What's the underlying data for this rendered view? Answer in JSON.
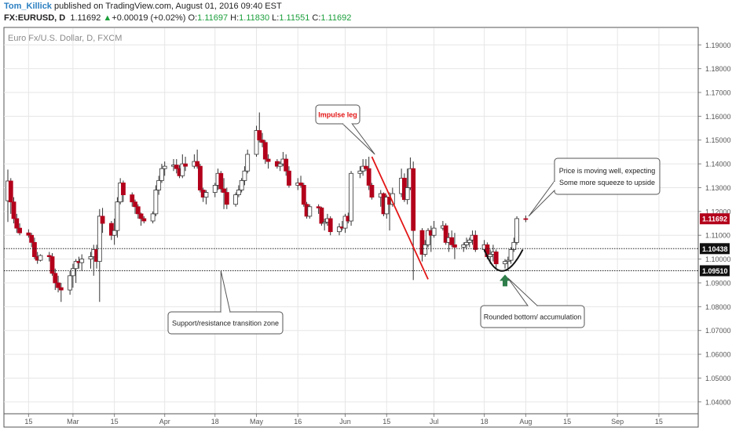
{
  "header": {
    "author": "Tom_Killick",
    "published": "published on TradingView.com, August 01, 2016 09:40 EST",
    "symbol": "FX:EURUSD, D",
    "last": "1.11692",
    "change_arrow": "▲",
    "change": "+0.00019 (+0.02%)",
    "o_label": "O:",
    "o_value": "1.11697",
    "h_label": "H:",
    "h_value": "1.11830",
    "l_label": "L:",
    "l_value": "1.11551",
    "c_label": "C:",
    "c_value": "1.11692"
  },
  "chart_title": "Euro Fx/U.S. Dollar, D, FXCM",
  "colors": {
    "bull": "#ffffff",
    "bear": "#b3001b",
    "wick": "#333333",
    "impulse": "#e31515",
    "arrow": "#2f7d4a",
    "grid": "#e6e6e6"
  },
  "chart_data": {
    "type": "candlestick",
    "x_start_date": "2016-02-08",
    "x_end_date": "2016-09-19",
    "ylim": [
      1.035,
      1.197
    ],
    "y_ticks": [
      "1.19000",
      "1.18000",
      "1.17000",
      "1.16000",
      "1.15000",
      "1.14000",
      "1.13000",
      "1.12000",
      "1.11000",
      "1.10000",
      "1.09000",
      "1.08000",
      "1.07000",
      "1.06000",
      "1.05000",
      "1.04000"
    ],
    "x_ticks": [
      {
        "date": "2016-02-15",
        "label": "15"
      },
      {
        "date": "2016-03-01",
        "label": "Mar"
      },
      {
        "date": "2016-03-15",
        "label": "15"
      },
      {
        "date": "2016-04-01",
        "label": "Apr"
      },
      {
        "date": "2016-04-18",
        "label": "18"
      },
      {
        "date": "2016-05-02",
        "label": "May"
      },
      {
        "date": "2016-05-16",
        "label": "16"
      },
      {
        "date": "2016-06-01",
        "label": "Jun"
      },
      {
        "date": "2016-06-15",
        "label": "15"
      },
      {
        "date": "2016-07-01",
        "label": "Jul"
      },
      {
        "date": "2016-07-18",
        "label": "18"
      },
      {
        "date": "2016-08-01",
        "label": "Aug"
      },
      {
        "date": "2016-08-15",
        "label": "15"
      },
      {
        "date": "2016-09-01",
        "label": "Sep"
      },
      {
        "date": "2016-09-15",
        "label": "15"
      }
    ],
    "horizontal_lines": [
      {
        "value": 1.10438,
        "label": "1.10438"
      },
      {
        "value": 1.0951,
        "label": "1.09510"
      }
    ],
    "last_price": {
      "value": 1.11692,
      "label": "1.11692"
    },
    "candles": [
      {
        "date": "2016-02-08",
        "o": 1.1245,
        "h": 1.1376,
        "l": 1.1156,
        "c": 1.1328
      },
      {
        "date": "2016-02-09",
        "o": 1.1328,
        "h": 1.134,
        "l": 1.119,
        "c": 1.124
      },
      {
        "date": "2016-02-10",
        "o": 1.124,
        "h": 1.126,
        "l": 1.115,
        "c": 1.117
      },
      {
        "date": "2016-02-11",
        "o": 1.117,
        "h": 1.119,
        "l": 1.111,
        "c": 1.113
      },
      {
        "date": "2016-02-12",
        "o": 1.113,
        "h": 1.115,
        "l": 1.11,
        "c": 1.111
      },
      {
        "date": "2016-02-15",
        "o": 1.111,
        "h": 1.1125,
        "l": 1.109,
        "c": 1.11
      },
      {
        "date": "2016-02-16",
        "o": 1.11,
        "h": 1.111,
        "l": 1.105,
        "c": 1.107
      },
      {
        "date": "2016-02-17",
        "o": 1.107,
        "h": 1.109,
        "l": 1.1,
        "c": 1.101
      },
      {
        "date": "2016-02-18",
        "o": 1.101,
        "h": 1.103,
        "l": 1.098,
        "c": 1.0995
      },
      {
        "date": "2016-02-19",
        "o": 1.0995,
        "h": 1.102,
        "l": 1.099,
        "c": 1.1015
      },
      {
        "date": "2016-02-22",
        "o": 1.1015,
        "h": 1.103,
        "l": 1.099,
        "c": 1.101
      },
      {
        "date": "2016-02-23",
        "o": 1.101,
        "h": 1.1025,
        "l": 1.093,
        "c": 1.094
      },
      {
        "date": "2016-02-24",
        "o": 1.094,
        "h": 1.096,
        "l": 1.087,
        "c": 1.09
      },
      {
        "date": "2016-02-25",
        "o": 1.09,
        "h": 1.093,
        "l": 1.086,
        "c": 1.088
      },
      {
        "date": "2016-02-26",
        "o": 1.088,
        "h": 1.09,
        "l": 1.082,
        "c": 1.087
      },
      {
        "date": "2016-02-29",
        "o": 1.087,
        "h": 1.095,
        "l": 1.085,
        "c": 1.093
      },
      {
        "date": "2016-03-01",
        "o": 1.093,
        "h": 1.098,
        "l": 1.088,
        "c": 1.096
      },
      {
        "date": "2016-03-02",
        "o": 1.096,
        "h": 1.1,
        "l": 1.09,
        "c": 1.099
      },
      {
        "date": "2016-03-03",
        "o": 1.099,
        "h": 1.101,
        "l": 1.096,
        "c": 1.0985
      },
      {
        "date": "2016-03-04",
        "o": 1.0985,
        "h": 1.102,
        "l": 1.095,
        "c": 1.1
      },
      {
        "date": "2016-03-07",
        "o": 1.1,
        "h": 1.103,
        "l": 1.096,
        "c": 1.101
      },
      {
        "date": "2016-03-08",
        "o": 1.101,
        "h": 1.106,
        "l": 1.093,
        "c": 1.104
      },
      {
        "date": "2016-03-09",
        "o": 1.104,
        "h": 1.106,
        "l": 1.096,
        "c": 1.099
      },
      {
        "date": "2016-03-10",
        "o": 1.099,
        "h": 1.121,
        "l": 1.082,
        "c": 1.118
      },
      {
        "date": "2016-03-11",
        "o": 1.118,
        "h": 1.1215,
        "l": 1.111,
        "c": 1.115
      },
      {
        "date": "2016-03-14",
        "o": 1.115,
        "h": 1.116,
        "l": 1.108,
        "c": 1.11
      },
      {
        "date": "2016-03-15",
        "o": 1.11,
        "h": 1.117,
        "l": 1.106,
        "c": 1.112
      },
      {
        "date": "2016-03-16",
        "o": 1.112,
        "h": 1.126,
        "l": 1.109,
        "c": 1.124
      },
      {
        "date": "2016-03-17",
        "o": 1.124,
        "h": 1.134,
        "l": 1.123,
        "c": 1.132
      },
      {
        "date": "2016-03-18",
        "o": 1.132,
        "h": 1.133,
        "l": 1.124,
        "c": 1.127
      },
      {
        "date": "2016-03-21",
        "o": 1.127,
        "h": 1.128,
        "l": 1.122,
        "c": 1.124
      },
      {
        "date": "2016-03-22",
        "o": 1.124,
        "h": 1.125,
        "l": 1.119,
        "c": 1.122
      },
      {
        "date": "2016-03-23",
        "o": 1.122,
        "h": 1.123,
        "l": 1.117,
        "c": 1.119
      },
      {
        "date": "2016-03-24",
        "o": 1.119,
        "h": 1.1195,
        "l": 1.114,
        "c": 1.117
      },
      {
        "date": "2016-03-25",
        "o": 1.117,
        "h": 1.118,
        "l": 1.115,
        "c": 1.116
      },
      {
        "date": "2016-03-28",
        "o": 1.116,
        "h": 1.12,
        "l": 1.115,
        "c": 1.119
      },
      {
        "date": "2016-03-29",
        "o": 1.119,
        "h": 1.131,
        "l": 1.118,
        "c": 1.129
      },
      {
        "date": "2016-03-30",
        "o": 1.129,
        "h": 1.135,
        "l": 1.127,
        "c": 1.133
      },
      {
        "date": "2016-03-31",
        "o": 1.133,
        "h": 1.14,
        "l": 1.132,
        "c": 1.138
      },
      {
        "date": "2016-04-01",
        "o": 1.138,
        "h": 1.141,
        "l": 1.135,
        "c": 1.139
      },
      {
        "date": "2016-04-04",
        "o": 1.139,
        "h": 1.142,
        "l": 1.137,
        "c": 1.1395
      },
      {
        "date": "2016-04-05",
        "o": 1.1395,
        "h": 1.142,
        "l": 1.136,
        "c": 1.138
      },
      {
        "date": "2016-04-06",
        "o": 1.138,
        "h": 1.1395,
        "l": 1.134,
        "c": 1.135
      },
      {
        "date": "2016-04-07",
        "o": 1.135,
        "h": 1.144,
        "l": 1.134,
        "c": 1.14
      },
      {
        "date": "2016-04-08",
        "o": 1.14,
        "h": 1.143,
        "l": 1.137,
        "c": 1.139
      },
      {
        "date": "2016-04-11",
        "o": 1.139,
        "h": 1.144,
        "l": 1.138,
        "c": 1.141
      },
      {
        "date": "2016-04-12",
        "o": 1.141,
        "h": 1.146,
        "l": 1.138,
        "c": 1.139
      },
      {
        "date": "2016-04-13",
        "o": 1.139,
        "h": 1.14,
        "l": 1.128,
        "c": 1.129
      },
      {
        "date": "2016-04-14",
        "o": 1.129,
        "h": 1.13,
        "l": 1.124,
        "c": 1.126
      },
      {
        "date": "2016-04-15",
        "o": 1.126,
        "h": 1.129,
        "l": 1.123,
        "c": 1.128
      },
      {
        "date": "2016-04-18",
        "o": 1.128,
        "h": 1.132,
        "l": 1.126,
        "c": 1.131
      },
      {
        "date": "2016-04-19",
        "o": 1.131,
        "h": 1.138,
        "l": 1.129,
        "c": 1.136
      },
      {
        "date": "2016-04-20",
        "o": 1.136,
        "h": 1.137,
        "l": 1.128,
        "c": 1.1295
      },
      {
        "date": "2016-04-21",
        "o": 1.1295,
        "h": 1.134,
        "l": 1.121,
        "c": 1.128
      },
      {
        "date": "2016-04-22",
        "o": 1.128,
        "h": 1.13,
        "l": 1.121,
        "c": 1.123
      },
      {
        "date": "2016-04-25",
        "o": 1.123,
        "h": 1.128,
        "l": 1.122,
        "c": 1.127
      },
      {
        "date": "2016-04-26",
        "o": 1.127,
        "h": 1.131,
        "l": 1.126,
        "c": 1.129
      },
      {
        "date": "2016-04-27",
        "o": 1.129,
        "h": 1.134,
        "l": 1.128,
        "c": 1.133
      },
      {
        "date": "2016-04-28",
        "o": 1.133,
        "h": 1.139,
        "l": 1.131,
        "c": 1.137
      },
      {
        "date": "2016-04-29",
        "o": 1.137,
        "h": 1.146,
        "l": 1.136,
        "c": 1.144
      },
      {
        "date": "2016-05-02",
        "o": 1.144,
        "h": 1.156,
        "l": 1.143,
        "c": 1.154
      },
      {
        "date": "2016-05-03",
        "o": 1.154,
        "h": 1.1616,
        "l": 1.149,
        "c": 1.15
      },
      {
        "date": "2016-05-04",
        "o": 1.15,
        "h": 1.153,
        "l": 1.147,
        "c": 1.149
      },
      {
        "date": "2016-05-05",
        "o": 1.149,
        "h": 1.15,
        "l": 1.14,
        "c": 1.142
      },
      {
        "date": "2016-05-06",
        "o": 1.142,
        "h": 1.144,
        "l": 1.138,
        "c": 1.141
      },
      {
        "date": "2016-05-09",
        "o": 1.141,
        "h": 1.142,
        "l": 1.138,
        "c": 1.139
      },
      {
        "date": "2016-05-10",
        "o": 1.139,
        "h": 1.141,
        "l": 1.137,
        "c": 1.14
      },
      {
        "date": "2016-05-11",
        "o": 1.14,
        "h": 1.145,
        "l": 1.139,
        "c": 1.142
      },
      {
        "date": "2016-05-12",
        "o": 1.142,
        "h": 1.144,
        "l": 1.135,
        "c": 1.137
      },
      {
        "date": "2016-05-13",
        "o": 1.137,
        "h": 1.139,
        "l": 1.13,
        "c": 1.131
      },
      {
        "date": "2016-05-16",
        "o": 1.131,
        "h": 1.134,
        "l": 1.129,
        "c": 1.132
      },
      {
        "date": "2016-05-17",
        "o": 1.132,
        "h": 1.135,
        "l": 1.13,
        "c": 1.131
      },
      {
        "date": "2016-05-18",
        "o": 1.131,
        "h": 1.132,
        "l": 1.122,
        "c": 1.123
      },
      {
        "date": "2016-05-19",
        "o": 1.123,
        "h": 1.124,
        "l": 1.117,
        "c": 1.118
      },
      {
        "date": "2016-05-20",
        "o": 1.118,
        "h": 1.123,
        "l": 1.117,
        "c": 1.122
      },
      {
        "date": "2016-05-23",
        "o": 1.122,
        "h": 1.123,
        "l": 1.119,
        "c": 1.1215
      },
      {
        "date": "2016-05-24",
        "o": 1.1215,
        "h": 1.122,
        "l": 1.114,
        "c": 1.115
      },
      {
        "date": "2016-05-25",
        "o": 1.115,
        "h": 1.117,
        "l": 1.112,
        "c": 1.1155
      },
      {
        "date": "2016-05-26",
        "o": 1.1155,
        "h": 1.119,
        "l": 1.114,
        "c": 1.117
      },
      {
        "date": "2016-05-27",
        "o": 1.117,
        "h": 1.118,
        "l": 1.11,
        "c": 1.1115
      },
      {
        "date": "2016-05-30",
        "o": 1.1115,
        "h": 1.115,
        "l": 1.11,
        "c": 1.1135
      },
      {
        "date": "2016-05-31",
        "o": 1.1135,
        "h": 1.116,
        "l": 1.112,
        "c": 1.113
      },
      {
        "date": "2016-06-01",
        "o": 1.113,
        "h": 1.119,
        "l": 1.111,
        "c": 1.118
      },
      {
        "date": "2016-06-02",
        "o": 1.118,
        "h": 1.1195,
        "l": 1.115,
        "c": 1.116
      },
      {
        "date": "2016-06-03",
        "o": 1.116,
        "h": 1.137,
        "l": 1.114,
        "c": 1.136
      },
      {
        "date": "2016-06-06",
        "o": 1.136,
        "h": 1.139,
        "l": 1.134,
        "c": 1.137
      },
      {
        "date": "2016-06-07",
        "o": 1.137,
        "h": 1.142,
        "l": 1.135,
        "c": 1.139
      },
      {
        "date": "2016-06-08",
        "o": 1.139,
        "h": 1.142,
        "l": 1.137,
        "c": 1.138
      },
      {
        "date": "2016-06-09",
        "o": 1.138,
        "h": 1.143,
        "l": 1.129,
        "c": 1.131
      },
      {
        "date": "2016-06-10",
        "o": 1.131,
        "h": 1.132,
        "l": 1.125,
        "c": 1.126
      },
      {
        "date": "2016-06-13",
        "o": 1.126,
        "h": 1.129,
        "l": 1.122,
        "c": 1.1275
      },
      {
        "date": "2016-06-14",
        "o": 1.1275,
        "h": 1.128,
        "l": 1.118,
        "c": 1.119
      },
      {
        "date": "2016-06-15",
        "o": 1.119,
        "h": 1.127,
        "l": 1.117,
        "c": 1.126
      },
      {
        "date": "2016-06-16",
        "o": 1.126,
        "h": 1.128,
        "l": 1.112,
        "c": 1.123
      },
      {
        "date": "2016-06-17",
        "o": 1.123,
        "h": 1.13,
        "l": 1.122,
        "c": 1.1275
      },
      {
        "date": "2016-06-20",
        "o": 1.1275,
        "h": 1.138,
        "l": 1.126,
        "c": 1.134
      },
      {
        "date": "2016-06-21",
        "o": 1.134,
        "h": 1.136,
        "l": 1.124,
        "c": 1.125
      },
      {
        "date": "2016-06-22",
        "o": 1.125,
        "h": 1.138,
        "l": 1.123,
        "c": 1.13
      },
      {
        "date": "2016-06-23",
        "o": 1.13,
        "h": 1.1427,
        "l": 1.129,
        "c": 1.138
      },
      {
        "date": "2016-06-24",
        "o": 1.138,
        "h": 1.141,
        "l": 1.0912,
        "c": 1.112
      },
      {
        "date": "2016-06-27",
        "o": 1.112,
        "h": 1.113,
        "l": 1.099,
        "c": 1.102
      },
      {
        "date": "2016-06-28",
        "o": 1.102,
        "h": 1.108,
        "l": 1.101,
        "c": 1.106
      },
      {
        "date": "2016-06-29",
        "o": 1.106,
        "h": 1.113,
        "l": 1.105,
        "c": 1.112
      },
      {
        "date": "2016-06-30",
        "o": 1.112,
        "h": 1.114,
        "l": 1.103,
        "c": 1.11
      },
      {
        "date": "2016-07-01",
        "o": 1.11,
        "h": 1.116,
        "l": 1.109,
        "c": 1.113
      },
      {
        "date": "2016-07-04",
        "o": 1.113,
        "h": 1.116,
        "l": 1.112,
        "c": 1.114
      },
      {
        "date": "2016-07-05",
        "o": 1.114,
        "h": 1.115,
        "l": 1.106,
        "c": 1.107
      },
      {
        "date": "2016-07-06",
        "o": 1.107,
        "h": 1.111,
        "l": 1.103,
        "c": 1.109
      },
      {
        "date": "2016-07-07",
        "o": 1.109,
        "h": 1.112,
        "l": 1.105,
        "c": 1.106
      },
      {
        "date": "2016-07-08",
        "o": 1.106,
        "h": 1.111,
        "l": 1.1,
        "c": 1.105
      },
      {
        "date": "2016-07-11",
        "o": 1.105,
        "h": 1.107,
        "l": 1.103,
        "c": 1.106
      },
      {
        "date": "2016-07-12",
        "o": 1.106,
        "h": 1.109,
        "l": 1.104,
        "c": 1.107
      },
      {
        "date": "2016-07-13",
        "o": 1.107,
        "h": 1.109,
        "l": 1.105,
        "c": 1.108
      },
      {
        "date": "2016-07-14",
        "o": 1.108,
        "h": 1.112,
        "l": 1.106,
        "c": 1.11
      },
      {
        "date": "2016-07-15",
        "o": 1.11,
        "h": 1.112,
        "l": 1.103,
        "c": 1.104
      },
      {
        "date": "2016-07-18",
        "o": 1.104,
        "h": 1.108,
        "l": 1.103,
        "c": 1.106
      },
      {
        "date": "2016-07-19",
        "o": 1.106,
        "h": 1.107,
        "l": 1.1,
        "c": 1.101
      },
      {
        "date": "2016-07-20",
        "o": 1.101,
        "h": 1.104,
        "l": 1.098,
        "c": 1.102
      },
      {
        "date": "2016-07-21",
        "o": 1.102,
        "h": 1.106,
        "l": 1.099,
        "c": 1.103
      },
      {
        "date": "2016-07-22",
        "o": 1.103,
        "h": 1.104,
        "l": 1.096,
        "c": 1.098
      },
      {
        "date": "2016-07-25",
        "o": 1.098,
        "h": 1.1,
        "l": 1.096,
        "c": 1.099
      },
      {
        "date": "2016-07-26",
        "o": 1.099,
        "h": 1.101,
        "l": 1.095,
        "c": 1.0995
      },
      {
        "date": "2016-07-27",
        "o": 1.0995,
        "h": 1.105,
        "l": 1.098,
        "c": 1.104
      },
      {
        "date": "2016-07-28",
        "o": 1.104,
        "h": 1.109,
        "l": 1.103,
        "c": 1.107
      },
      {
        "date": "2016-07-29",
        "o": 1.107,
        "h": 1.118,
        "l": 1.106,
        "c": 1.117
      },
      {
        "date": "2016-08-01",
        "o": 1.11697,
        "h": 1.1183,
        "l": 1.11551,
        "c": 1.11692
      }
    ],
    "impulse_line": {
      "start": {
        "date": "2016-06-10",
        "value": 1.143
      },
      "end": {
        "date": "2016-06-29",
        "value": 1.0915
      }
    },
    "rounded_bottom_arc": {
      "start": {
        "date": "2016-07-18",
        "value": 1.104
      },
      "bottom": {
        "date": "2016-07-24",
        "value": 1.095
      },
      "end": {
        "date": "2016-07-31",
        "value": 1.104
      }
    },
    "arrow_point": {
      "date": "2016-07-25",
      "value": 1.0935
    },
    "annotations": [
      {
        "name": "impulse-leg-callout",
        "lines": [
          "Impulse leg"
        ],
        "color": "#e31515",
        "anchor": {
          "date": "2016-06-11",
          "value": 1.144
        }
      },
      {
        "name": "support-resistance-callout",
        "lines": [
          "Support/resistance transition zone"
        ],
        "anchor": {
          "date": "2016-04-20",
          "value": 1.095
        }
      },
      {
        "name": "rounded-bottom-callout",
        "lines": [
          "Rounded bottom/ accumulation"
        ],
        "anchor": {
          "date": "2016-07-26",
          "value": 1.092
        }
      },
      {
        "name": "price-moving-callout",
        "lines": [
          "Price is moving well, expecting",
          "Some more squeeze to upside"
        ],
        "anchor": {
          "date": "2016-08-02",
          "value": 1.118
        }
      }
    ]
  }
}
